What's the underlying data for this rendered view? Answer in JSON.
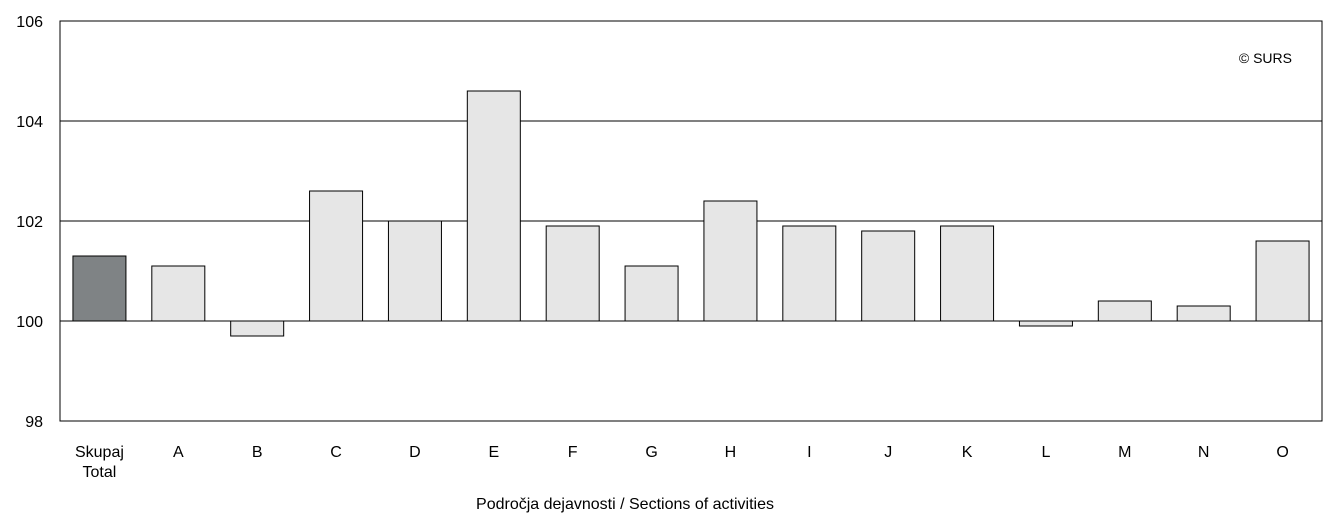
{
  "chart_data": {
    "type": "bar",
    "categories": [
      "Skupaj\nTotal",
      "A",
      "B",
      "C",
      "D",
      "E",
      "F",
      "G",
      "H",
      "I",
      "J",
      "K",
      "L",
      "M",
      "N",
      "O"
    ],
    "values": [
      101.3,
      101.1,
      99.7,
      102.6,
      102.0,
      104.6,
      101.9,
      101.1,
      102.4,
      101.9,
      101.8,
      101.9,
      99.9,
      100.4,
      100.3,
      101.6
    ],
    "baseline": 100,
    "ylim": [
      98,
      106
    ],
    "yticks": [
      "98",
      "100",
      "102",
      "104",
      "106"
    ],
    "xlabel": "Področja dejavnosti / Sections of activities",
    "ylabel": "",
    "title": "",
    "grid": true,
    "credit": "© SURS",
    "colors": {
      "highlight": "#7f8385",
      "bar": "#e6e6e6",
      "outline": "#000000"
    },
    "highlight_index": 0
  }
}
